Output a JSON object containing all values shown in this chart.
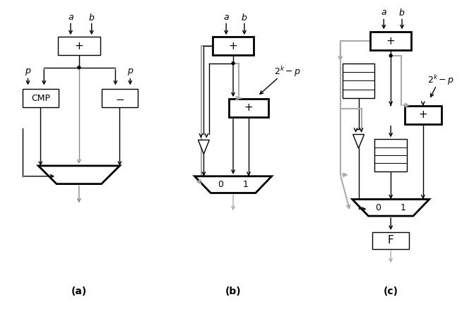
{
  "fig_width": 6.71,
  "fig_height": 4.62,
  "background": "#ffffff",
  "subfig_labels": [
    "(a)",
    "(b)",
    "(c)"
  ]
}
